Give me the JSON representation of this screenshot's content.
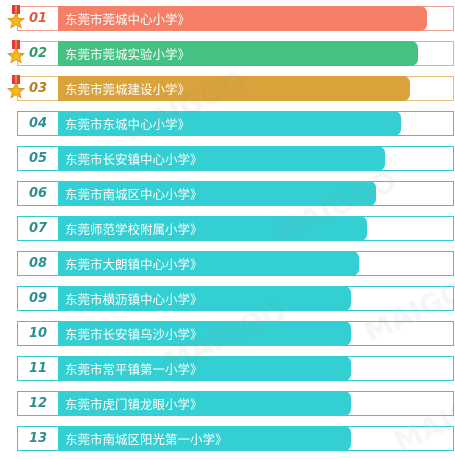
{
  "rankings": [
    {
      "rank": "01",
      "name": "东莞市莞城中心小学》",
      "bar_color": "#f57f66",
      "num_color": "#e05a3f",
      "medal": true,
      "border_color": "#f0a090"
    },
    {
      "rank": "02",
      "name": "东莞市莞城实验小学》",
      "bar_color": "#43c283",
      "num_color": "#2e9d66",
      "medal": true,
      "border_color": "#8ad6b0"
    },
    {
      "rank": "03",
      "name": "东莞市莞城建设小学》",
      "bar_color": "#d9a23a",
      "num_color": "#b88120",
      "medal": true,
      "border_color": "#e3c07c"
    },
    {
      "rank": "04",
      "name": "东莞市东城中心小学》",
      "bar_color": "#34cfd2",
      "num_color": "#2d8f94",
      "medal": false,
      "border_color": "#34cbd0"
    },
    {
      "rank": "05",
      "name": "东莞市长安镇中心小学》",
      "bar_color": "#34cfd2",
      "num_color": "#2d8f94",
      "medal": false,
      "border_color": "#34cbd0"
    },
    {
      "rank": "06",
      "name": "东莞市南城区中心小学》",
      "bar_color": "#34cfd2",
      "num_color": "#2d8f94",
      "medal": false,
      "border_color": "#34cbd0"
    },
    {
      "rank": "07",
      "name": "东莞师范学校附属小学》",
      "bar_color": "#34cfd2",
      "num_color": "#2d8f94",
      "medal": false,
      "border_color": "#34cbd0"
    },
    {
      "rank": "08",
      "name": "东莞市大朗镇中心小学》",
      "bar_color": "#34cfd2",
      "num_color": "#2d8f94",
      "medal": false,
      "border_color": "#34cbd0"
    },
    {
      "rank": "09",
      "name": "东莞市横沥镇中心小学》",
      "bar_color": "#34cfd2",
      "num_color": "#2d8f94",
      "medal": false,
      "border_color": "#34cbd0"
    },
    {
      "rank": "10",
      "name": "东莞市长安镇乌沙小学》",
      "bar_color": "#34cfd2",
      "num_color": "#2d8f94",
      "medal": false,
      "border_color": "#34cbd0"
    },
    {
      "rank": "11",
      "name": "东莞市常平镇第一小学》",
      "bar_color": "#34cfd2",
      "num_color": "#2d8f94",
      "medal": false,
      "border_color": "#34cbd0"
    },
    {
      "rank": "12",
      "name": "东莞市虎门镇龙眼小学》",
      "bar_color": "#34cfd2",
      "num_color": "#2d8f94",
      "medal": false,
      "border_color": "#34cbd0"
    },
    {
      "rank": "13",
      "name": "东莞市南城区阳光第一小学》",
      "bar_color": "#34cfd2",
      "num_color": "#2d8f94",
      "medal": false,
      "border_color": "#34cbd0"
    }
  ],
  "watermark_text": "MAIGOO"
}
